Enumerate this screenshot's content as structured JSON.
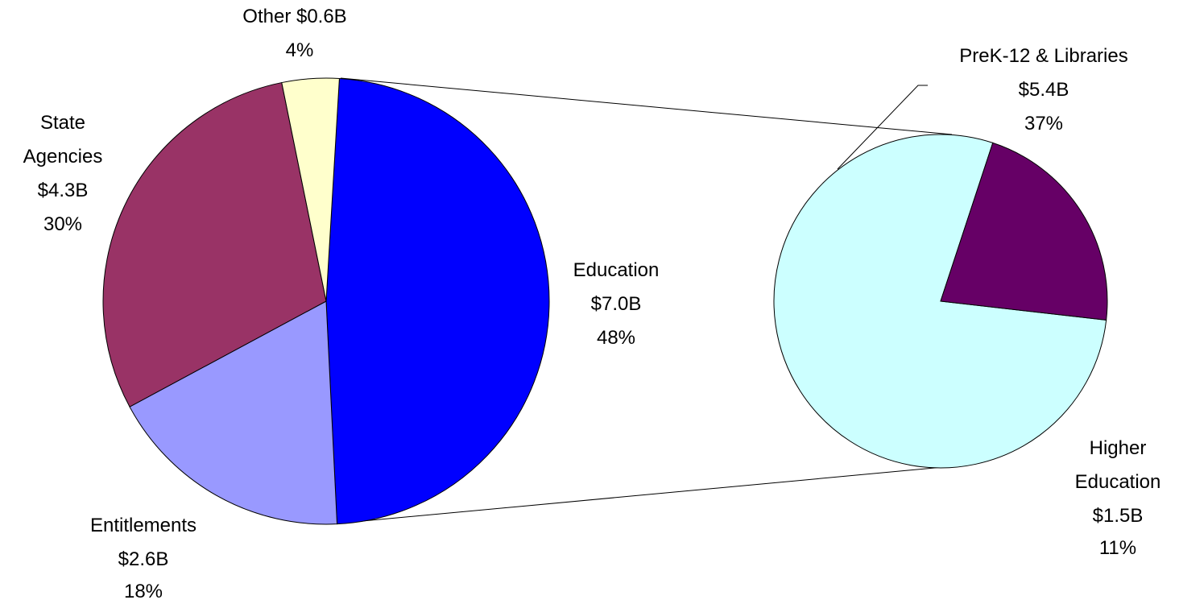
{
  "chart_data": {
    "type": "pie",
    "title": "",
    "main_pie": {
      "slices": [
        {
          "name": "Education",
          "value": 7.0,
          "percent": 48,
          "value_label": "$7.0B",
          "percent_label": "48%",
          "color": "#0000ff"
        },
        {
          "name": "Entitlements",
          "value": 2.6,
          "percent": 18,
          "value_label": "$2.6B",
          "percent_label": "18%",
          "color": "#9999ff"
        },
        {
          "name": "State Agencies",
          "value": 4.3,
          "percent": 30,
          "value_label": "$4.3B",
          "percent_label": "30%",
          "color": "#993366"
        },
        {
          "name": "Other",
          "value": 0.6,
          "percent": 4,
          "value_label": "$0.6B",
          "percent_label": "4%",
          "color": "#ffffcc"
        }
      ]
    },
    "breakout_pie": {
      "of": "Education",
      "slices": [
        {
          "name": "PreK-12 & Libraries",
          "value": 5.4,
          "percent": 37,
          "value_label": "$5.4B",
          "percent_label": "37%",
          "color": "#ccffff"
        },
        {
          "name": "Higher Education",
          "value": 1.5,
          "percent": 11,
          "value_label": "$1.5B",
          "percent_label": "11%",
          "color": "#660066"
        }
      ]
    },
    "labels": {
      "other": {
        "line1": "Other  $0.6B",
        "line2": "4%"
      },
      "state_agencies": {
        "line1": "State",
        "line2": "Agencies",
        "line3": "$4.3B",
        "line4": "30%"
      },
      "education": {
        "line1": "Education",
        "line2": "$7.0B",
        "line3": "48%"
      },
      "entitlements": {
        "line1": "Entitlements",
        "line2": "$2.6B",
        "line3": "18%"
      },
      "prek12": {
        "line1": "PreK-12 & Libraries",
        "line2": "$5.4B",
        "line3": "37%"
      },
      "higher_ed": {
        "line1": "Higher",
        "line2": "Education",
        "line3": "$1.5B",
        "line4": "11%"
      }
    },
    "legend": "none",
    "grid": false
  }
}
